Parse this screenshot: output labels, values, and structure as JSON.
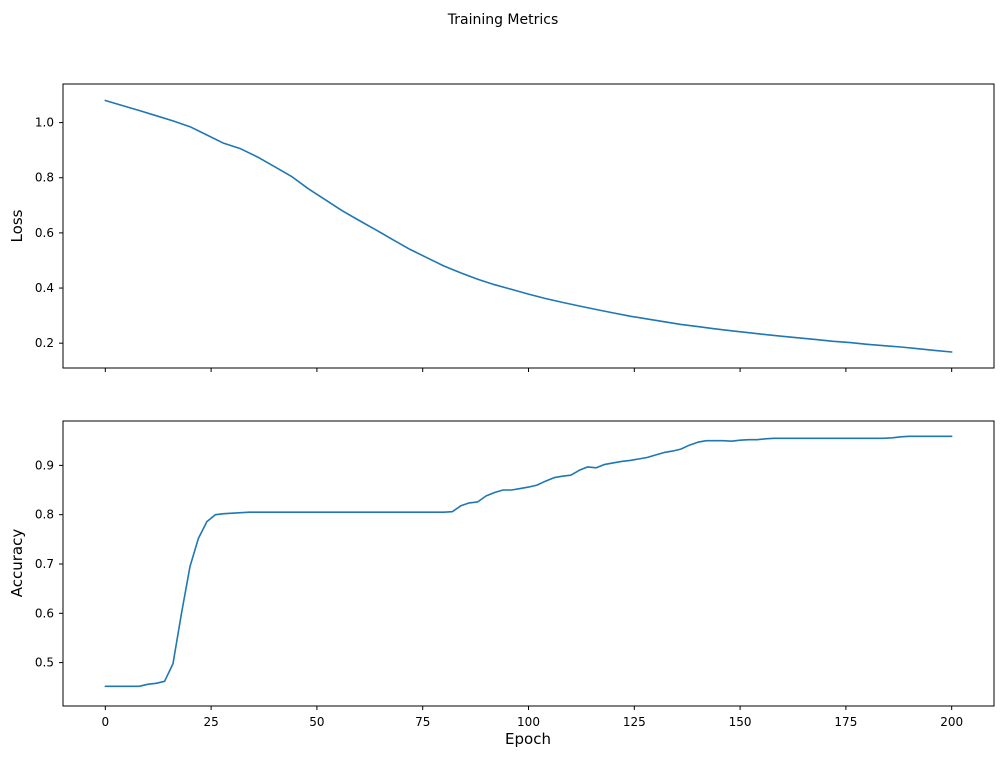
{
  "figure": {
    "title": "Training Metrics",
    "background": "#ffffff",
    "line_color": "#1f77b4"
  },
  "chart_data": [
    {
      "type": "line",
      "title": "",
      "xlabel": "",
      "ylabel": "Loss",
      "grid": false,
      "legend": "none",
      "xlim": [
        -10,
        210
      ],
      "ylim": [
        0.11,
        1.14
      ],
      "xticks": [
        0,
        25,
        50,
        75,
        100,
        125,
        150,
        175,
        200
      ],
      "yticks": [
        0.2,
        0.4,
        0.6,
        0.8,
        1.0
      ],
      "x": [
        0,
        4,
        8,
        12,
        16,
        20,
        24,
        28,
        32,
        36,
        40,
        44,
        48,
        52,
        56,
        60,
        64,
        68,
        72,
        76,
        80,
        84,
        88,
        92,
        96,
        100,
        104,
        108,
        112,
        116,
        120,
        124,
        128,
        132,
        136,
        140,
        144,
        148,
        152,
        156,
        160,
        164,
        168,
        172,
        176,
        180,
        184,
        188,
        192,
        196,
        200
      ],
      "series": [
        {
          "name": "loss",
          "values": [
            1.08,
            1.062,
            1.044,
            1.025,
            1.006,
            0.985,
            0.955,
            0.925,
            0.905,
            0.875,
            0.84,
            0.805,
            0.76,
            0.72,
            0.68,
            0.645,
            0.61,
            0.575,
            0.54,
            0.51,
            0.48,
            0.455,
            0.432,
            0.412,
            0.395,
            0.378,
            0.362,
            0.348,
            0.335,
            0.322,
            0.31,
            0.298,
            0.288,
            0.278,
            0.268,
            0.26,
            0.252,
            0.245,
            0.238,
            0.231,
            0.225,
            0.219,
            0.213,
            0.207,
            0.202,
            0.196,
            0.191,
            0.186,
            0.18,
            0.174,
            0.168
          ]
        }
      ]
    },
    {
      "type": "line",
      "title": "",
      "xlabel": "Epoch",
      "ylabel": "Accuracy",
      "grid": false,
      "legend": "none",
      "xlim": [
        -10,
        210
      ],
      "ylim": [
        0.412,
        0.99
      ],
      "xticks": [
        0,
        25,
        50,
        75,
        100,
        125,
        150,
        175,
        200
      ],
      "yticks": [
        0.5,
        0.6,
        0.7,
        0.8,
        0.9
      ],
      "x": [
        0,
        2,
        4,
        6,
        8,
        10,
        12,
        14,
        16,
        18,
        20,
        22,
        24,
        26,
        28,
        30,
        32,
        34,
        36,
        38,
        40,
        42,
        44,
        46,
        48,
        50,
        52,
        54,
        56,
        58,
        60,
        62,
        64,
        66,
        68,
        70,
        72,
        74,
        76,
        78,
        80,
        82,
        84,
        86,
        88,
        90,
        92,
        94,
        96,
        98,
        100,
        102,
        104,
        106,
        108,
        110,
        112,
        114,
        116,
        118,
        120,
        122,
        124,
        126,
        128,
        130,
        132,
        134,
        136,
        138,
        140,
        142,
        144,
        146,
        148,
        150,
        152,
        154,
        156,
        158,
        160,
        162,
        164,
        166,
        168,
        170,
        172,
        174,
        176,
        178,
        180,
        182,
        184,
        186,
        188,
        190,
        192,
        194,
        196,
        198,
        200
      ],
      "series": [
        {
          "name": "accuracy",
          "values": [
            0.452,
            0.452,
            0.452,
            0.452,
            0.452,
            0.456,
            0.458,
            0.462,
            0.498,
            0.6,
            0.695,
            0.752,
            0.786,
            0.8,
            0.802,
            0.803,
            0.804,
            0.805,
            0.805,
            0.805,
            0.805,
            0.805,
            0.805,
            0.805,
            0.805,
            0.805,
            0.805,
            0.805,
            0.805,
            0.805,
            0.805,
            0.805,
            0.805,
            0.805,
            0.805,
            0.805,
            0.805,
            0.805,
            0.805,
            0.805,
            0.805,
            0.806,
            0.818,
            0.824,
            0.826,
            0.838,
            0.845,
            0.85,
            0.85,
            0.853,
            0.856,
            0.86,
            0.868,
            0.875,
            0.878,
            0.88,
            0.89,
            0.897,
            0.895,
            0.902,
            0.905,
            0.908,
            0.91,
            0.913,
            0.916,
            0.921,
            0.926,
            0.929,
            0.933,
            0.941,
            0.947,
            0.95,
            0.95,
            0.95,
            0.949,
            0.951,
            0.952,
            0.952,
            0.954,
            0.955,
            0.955,
            0.955,
            0.955,
            0.955,
            0.955,
            0.955,
            0.955,
            0.955,
            0.955,
            0.955,
            0.955,
            0.955,
            0.955,
            0.956,
            0.958,
            0.959,
            0.959,
            0.959,
            0.959,
            0.959,
            0.959
          ]
        }
      ]
    }
  ]
}
